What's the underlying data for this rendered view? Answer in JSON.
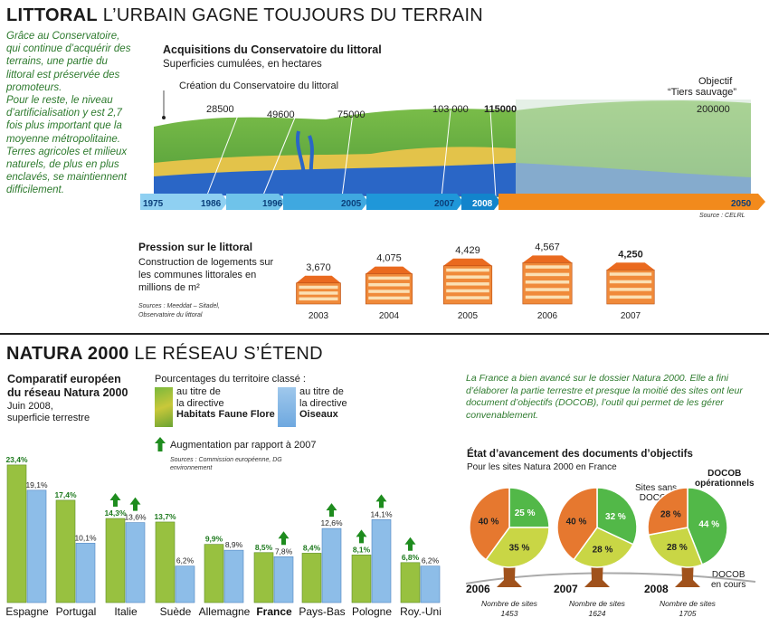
{
  "littoral": {
    "heading_bold": "LITTORAL",
    "heading_rest": "L’URBAIN GAGNE TOUJOURS DU TERRAIN",
    "intro_1": "Grâce au Conservatoire, qui continue d’acquérir des terrains, une partie du littoral est préservée des promoteurs.",
    "intro_2": "Pour le reste, le niveau d’artificialisation y est 2,7 fois plus important que la moyenne métropolitaine. Terres agricoles et milieux naturels, de plus en plus enclavés, se maintiennent difficilement.",
    "acq_title": "Acquisitions du Conservatoire du littoral",
    "acq_sub": "Superficies cumulées, en hectares",
    "creation_label": "Création du Conservatoire du littoral",
    "objectif_1": "Objectif",
    "objectif_2": "“Tiers sauvage”",
    "source": "Source : CELRL"
  },
  "acquisitions_chart": {
    "type": "area",
    "timeline": [
      "1975",
      "1986",
      "1996",
      "2005",
      "2007",
      "2008",
      "2050"
    ],
    "values": [
      "28500",
      "49600",
      "75000",
      "103 000",
      "115000",
      "200000"
    ],
    "colors": {
      "past": "#6fc3ea",
      "mid": "#1f97d9",
      "future": "#f28a1c"
    }
  },
  "pression": {
    "title": "Pression sur le littoral",
    "sub": "Construction de logements sur les communes littorales en millions de m²",
    "sources": "Sources : Meeddat – Sitadel, Observatoire du littoral"
  },
  "chart_data": [
    {
      "type": "bar",
      "title": "Pression sur le littoral",
      "categories": [
        "2003",
        "2004",
        "2005",
        "2006",
        "2007"
      ],
      "values": [
        3.67,
        4.075,
        4.429,
        4.567,
        4.25
      ],
      "labels": [
        "3,670",
        "4,075",
        "4,429",
        "4,567",
        "4,250"
      ]
    },
    {
      "type": "bar",
      "title": "Comparatif européen du réseau Natura 2000",
      "categories": [
        "Espagne",
        "Portugal",
        "Italie",
        "Suède",
        "Allemagne",
        "France",
        "Pays-Bas",
        "Pologne",
        "Roy.-Uni"
      ],
      "series": [
        {
          "name": "au titre de la directive Habitats Faune Flore",
          "values": [
            23.4,
            17.4,
            14.3,
            13.7,
            9.9,
            8.5,
            8.4,
            8.1,
            6.8
          ],
          "labels": [
            "23,4%",
            "17,4%",
            "14,3%",
            "13,7%",
            "9,9%",
            "8,5%",
            "8,4%",
            "8,1%",
            "6,8%"
          ],
          "up": [
            false,
            false,
            true,
            false,
            false,
            false,
            false,
            true,
            true
          ]
        },
        {
          "name": "au titre de la directive Oiseaux",
          "values": [
            19.1,
            10.1,
            13.6,
            6.2,
            8.9,
            7.8,
            12.6,
            14.1,
            6.2
          ],
          "labels": [
            "19,1%",
            "10,1%",
            "13,6%",
            "6,2%",
            "8,9%",
            "7,8%",
            "12,6%",
            "14,1%",
            "6,2%"
          ],
          "up": [
            false,
            false,
            true,
            false,
            false,
            true,
            true,
            true,
            false
          ]
        }
      ],
      "ylim": [
        0,
        25
      ]
    },
    {
      "type": "pie",
      "title": "État d’avancement des documents d’objectifs",
      "groups": [
        {
          "year": "2006",
          "sites": "1453",
          "slices": [
            40,
            25,
            35
          ],
          "labels": [
            "40 %",
            "25 %",
            "35 %"
          ]
        },
        {
          "year": "2007",
          "sites": "1624",
          "slices": [
            40,
            32,
            28
          ],
          "labels": [
            "40 %",
            "32 %",
            "28 %"
          ]
        },
        {
          "year": "2008",
          "sites": "1705",
          "slices": [
            28,
            44,
            28
          ],
          "labels": [
            "28 %",
            "44 %",
            "28 %"
          ]
        }
      ],
      "colors": [
        "#e6782f",
        "#52b848",
        "#c9d645"
      ]
    }
  ],
  "natura": {
    "heading_bold": "NATURA 2000",
    "heading_rest": "LE RÉSEAU S’ÉTEND",
    "comp_title_1": "Comparatif européen",
    "comp_title_2": "du réseau Natura 2000",
    "comp_sub_1": "Juin 2008,",
    "comp_sub_2": "superficie terrestre",
    "legend_head": "Pourcentages du territoire classé :",
    "legend_a1": "au titre de",
    "legend_a2": "la directive",
    "legend_a3": "Habitats Faune Flore",
    "legend_b1": "au titre de",
    "legend_b2": "la directive",
    "legend_b3": "Oiseaux",
    "legend_up": "Augmentation par rapport à 2007",
    "sources": "Sources : Commission européenne, DG environnement",
    "france_text": "La France a bien avancé sur le dossier Natura 2000. Elle a fini d’élaborer la partie terrestre et presque la moitié des sites ont leur document d’objectifs (DOCOB), l’outil qui permet de les gérer convenablement.",
    "docob_title": "État d’avancement des documents d’objectifs",
    "docob_sub": "Pour les sites Natura 2000 en France",
    "lbl_sans_1": "Sites sans",
    "lbl_sans_2": "DOCOB",
    "lbl_oper_1": "DOCOB",
    "lbl_oper_2": "opérationnels",
    "lbl_cours_1": "DOCOB",
    "lbl_cours_2": "en cours",
    "nb_sites": "Nombre de sites"
  }
}
